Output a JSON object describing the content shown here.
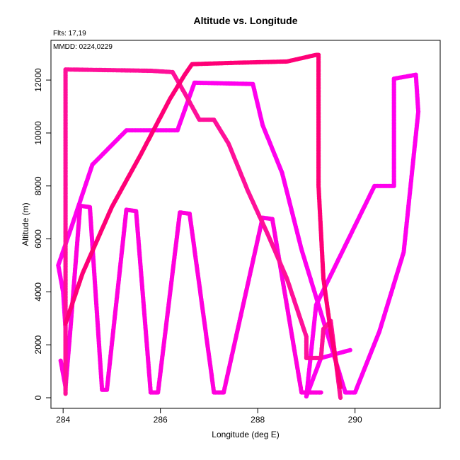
{
  "chart_data": {
    "type": "scatter",
    "title": "Altitude vs. Longitude",
    "xlabel": "Longitude (deg E)",
    "ylabel": "Altitude (m)",
    "annotations": [
      "Flts: 17,19",
      "MMDD: 0224,0229"
    ],
    "xlim": [
      283.75,
      291.75
    ],
    "ylim": [
      -400,
      13500
    ],
    "xticks": [
      284,
      286,
      288,
      290
    ],
    "yticks": [
      0,
      2000,
      4000,
      6000,
      8000,
      10000,
      12000
    ],
    "grid": false,
    "legend": "none",
    "series": [
      {
        "color": "#ff00ee",
        "points": [
          [
            284.05,
            300
          ],
          [
            284.05,
            2600
          ],
          [
            284.0,
            4000
          ],
          [
            283.9,
            5000
          ],
          [
            284.2,
            6600
          ],
          [
            284.6,
            8800
          ],
          [
            285.3,
            10100
          ],
          [
            286.35,
            10100
          ],
          [
            286.7,
            11900
          ],
          [
            287.9,
            11850
          ],
          [
            288.1,
            10300
          ],
          [
            288.5,
            8500
          ],
          [
            288.9,
            5600
          ],
          [
            289.5,
            2000
          ],
          [
            289.8,
            200
          ],
          [
            290.0,
            200
          ],
          [
            290.5,
            2500
          ],
          [
            291.0,
            5500
          ],
          [
            291.3,
            10800
          ],
          [
            291.25,
            12200
          ],
          [
            290.8,
            12050
          ],
          [
            290.8,
            8000
          ],
          [
            290.4,
            8000
          ],
          [
            289.2,
            3500
          ],
          [
            289.0,
            50
          ],
          [
            289.3,
            1500
          ],
          [
            289.9,
            1800
          ]
        ]
      },
      {
        "color": "#ff00dd",
        "points": [
          [
            283.95,
            1400
          ],
          [
            284.05,
            400
          ],
          [
            284.15,
            2600
          ],
          [
            284.35,
            7250
          ],
          [
            284.55,
            7200
          ],
          [
            284.8,
            300
          ],
          [
            284.9,
            300
          ],
          [
            285.3,
            7100
          ],
          [
            285.5,
            7050
          ],
          [
            285.8,
            200
          ],
          [
            285.95,
            200
          ],
          [
            286.4,
            7000
          ],
          [
            286.6,
            6950
          ],
          [
            287.1,
            200
          ],
          [
            287.3,
            200
          ],
          [
            288.1,
            6800
          ],
          [
            288.3,
            6750
          ],
          [
            288.9,
            200
          ],
          [
            289.3,
            200
          ]
        ]
      },
      {
        "color": "#ff1099",
        "points": [
          [
            284.05,
            150
          ],
          [
            284.05,
            12400
          ],
          [
            285.8,
            12350
          ],
          [
            286.25,
            12300
          ],
          [
            286.5,
            11500
          ],
          [
            286.8,
            10500
          ],
          [
            287.1,
            10500
          ],
          [
            287.4,
            9600
          ],
          [
            287.8,
            7800
          ],
          [
            288.2,
            6200
          ],
          [
            288.6,
            4500
          ],
          [
            289.0,
            2300
          ],
          [
            289.0,
            1500
          ],
          [
            289.3,
            1500
          ],
          [
            289.35,
            2600
          ],
          [
            289.5,
            2900
          ],
          [
            289.7,
            0
          ]
        ]
      },
      {
        "color": "#ff0077",
        "points": [
          [
            284.05,
            2800
          ],
          [
            284.4,
            4700
          ],
          [
            285.0,
            7200
          ],
          [
            285.6,
            9200
          ],
          [
            286.2,
            11300
          ],
          [
            286.5,
            12200
          ],
          [
            286.65,
            12600
          ],
          [
            287.5,
            12650
          ],
          [
            288.6,
            12700
          ],
          [
            289.2,
            12950
          ],
          [
            289.25,
            12950
          ],
          [
            289.25,
            8000
          ],
          [
            289.35,
            4500
          ],
          [
            289.5,
            2500
          ],
          [
            289.7,
            400
          ]
        ]
      }
    ]
  }
}
